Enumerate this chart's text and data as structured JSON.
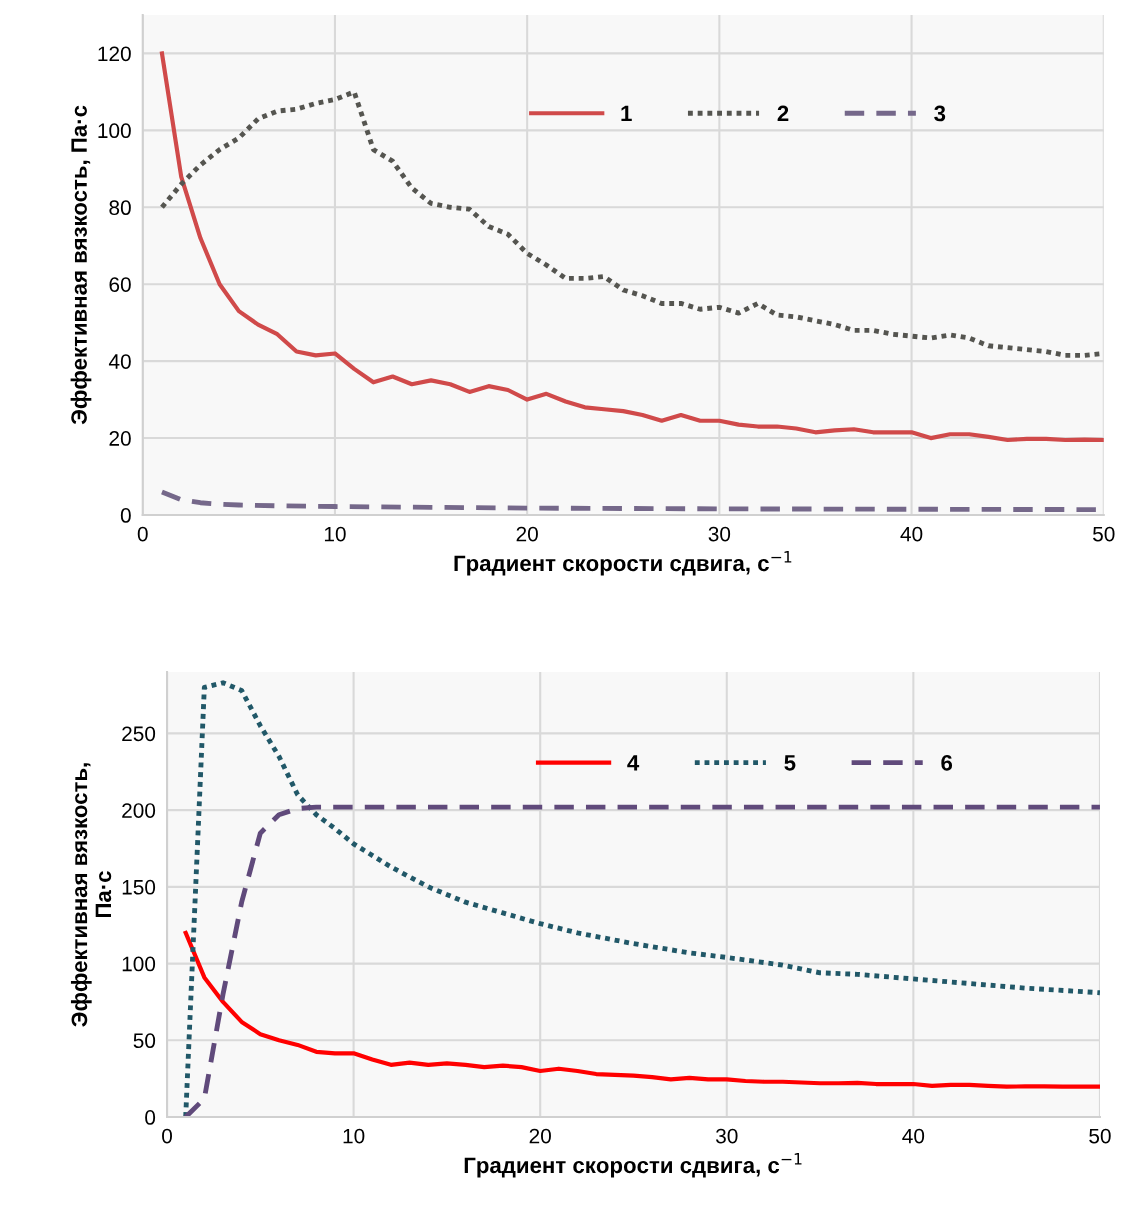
{
  "chart_data": [
    {
      "type": "line",
      "xlabel": "Градиент скорости сдвига, с$^{−1}$",
      "ylabel": "Эффективная вязкость, Па·с",
      "xlim": [
        0,
        50
      ],
      "xticks": [
        0,
        10,
        20,
        30,
        40,
        50
      ],
      "ylim": [
        0,
        130
      ],
      "yticks": [
        0,
        20,
        40,
        60,
        80,
        100,
        120
      ],
      "grid": true,
      "legend": "top",
      "series": [
        {
          "name": "1",
          "color": "#d04a4a",
          "line_style": "solid",
          "x": [
            1,
            2,
            3,
            4,
            5,
            6,
            7,
            8,
            9,
            10,
            11,
            12,
            13,
            14,
            15,
            16,
            17,
            18,
            19,
            20,
            21,
            22,
            23,
            24,
            25,
            26,
            27,
            28,
            29,
            30,
            31,
            32,
            33,
            34,
            35,
            36,
            37,
            38,
            39,
            40,
            41,
            42,
            43,
            44,
            45,
            46,
            47,
            48,
            49,
            50
          ],
          "values": [
            120,
            88,
            72,
            60,
            53,
            49.5,
            47,
            42.5,
            41.5,
            42,
            38,
            34.5,
            36,
            34,
            35,
            34,
            32,
            33.5,
            32.5,
            30,
            31.5,
            29.5,
            28,
            27.5,
            27,
            26,
            24.5,
            26,
            24.5,
            24.5,
            23.5,
            23,
            23,
            22.5,
            21.5,
            22,
            22.3,
            21.5,
            21.5,
            21.5,
            20,
            21,
            21,
            20.3,
            19.5,
            19.8,
            19.8,
            19.5,
            19.6,
            19.5
          ]
        },
        {
          "name": "2",
          "color": "#555550",
          "line_style": "dotted",
          "x": [
            1,
            2,
            3,
            4,
            5,
            6,
            7,
            8,
            9,
            10,
            11,
            12,
            13,
            14,
            15,
            16,
            17,
            18,
            19,
            20,
            21,
            22,
            23,
            24,
            25,
            26,
            27,
            28,
            29,
            30,
            31,
            32,
            33,
            34,
            35,
            36,
            37,
            38,
            39,
            40,
            41,
            42,
            43,
            44,
            45,
            46,
            47,
            48,
            49,
            50
          ],
          "values": [
            80,
            86,
            91,
            95,
            98,
            103,
            105,
            105.5,
            107,
            108,
            110,
            95,
            92,
            85,
            81,
            80,
            79.5,
            75,
            73,
            68,
            65,
            61.5,
            61.5,
            62,
            58.5,
            57,
            55,
            55,
            53.5,
            54,
            52.5,
            55,
            52,
            51.5,
            50.5,
            49.5,
            48,
            48,
            47,
            46.5,
            46,
            46.8,
            46,
            44,
            43.5,
            43,
            42.5,
            41.5,
            41.5,
            42
          ]
        },
        {
          "name": "3",
          "color": "#75688a",
          "line_style": "dashed",
          "x": [
            1,
            2,
            3,
            4,
            5,
            7,
            10,
            15,
            20,
            30,
            40,
            50
          ],
          "values": [
            6,
            4,
            3.2,
            2.8,
            2.6,
            2.4,
            2.2,
            2,
            1.8,
            1.6,
            1.5,
            1.4
          ]
        }
      ]
    },
    {
      "type": "line",
      "xlabel": "Градиент скорости сдвига, с$^{−1}$",
      "ylabel": "Эффективная вязкость,\nПа·с",
      "xlim": [
        0,
        50
      ],
      "xticks": [
        0,
        10,
        20,
        30,
        40,
        50
      ],
      "ylim": [
        0,
        290
      ],
      "yticks": [
        0,
        50,
        100,
        150,
        200,
        250
      ],
      "grid": true,
      "legend": "top",
      "series": [
        {
          "name": "4",
          "color": "#ff0000",
          "line_style": "solid",
          "x": [
            1,
            2,
            3,
            4,
            5,
            6,
            7,
            8,
            9,
            10,
            11,
            12,
            13,
            14,
            15,
            16,
            17,
            18,
            19,
            20,
            21,
            22,
            23,
            24,
            25,
            26,
            27,
            28,
            29,
            30,
            31,
            32,
            33,
            34,
            35,
            36,
            37,
            38,
            39,
            40,
            41,
            42,
            43,
            44,
            45,
            46,
            47,
            48,
            49,
            50
          ],
          "values": [
            120,
            91,
            75,
            62,
            54,
            50,
            47,
            42.5,
            41.5,
            41.5,
            37.5,
            34,
            35.5,
            34,
            35,
            34,
            32.5,
            33.5,
            32.5,
            30,
            31.5,
            30,
            28,
            27.5,
            27,
            26,
            24.5,
            25.5,
            24.5,
            24.5,
            23.5,
            23,
            23,
            22.5,
            22,
            22,
            22.3,
            21.5,
            21.5,
            21.5,
            20.3,
            21,
            21,
            20.3,
            19.8,
            20,
            20,
            19.8,
            19.8,
            19.8
          ]
        },
        {
          "name": "5",
          "color": "#215868",
          "line_style": "dotted",
          "x": [
            1,
            2,
            3,
            4,
            5,
            6,
            7,
            8,
            9,
            10,
            12,
            14,
            16,
            18,
            20,
            22,
            25,
            28,
            30,
            33,
            35,
            37,
            40,
            43,
            46,
            50
          ],
          "values": [
            0,
            280,
            283,
            278,
            255,
            235,
            210,
            197,
            188,
            178,
            163,
            150,
            140,
            133,
            126,
            120,
            113,
            107,
            104,
            99,
            94,
            93,
            90,
            87,
            84,
            81
          ]
        },
        {
          "name": "6",
          "color": "#604a7b",
          "line_style": "dashed",
          "x": [
            1,
            2,
            3,
            4,
            5,
            6,
            7,
            8,
            50
          ],
          "values": [
            0,
            12,
            80,
            140,
            185,
            197,
            201,
            202,
            202
          ]
        }
      ]
    }
  ]
}
